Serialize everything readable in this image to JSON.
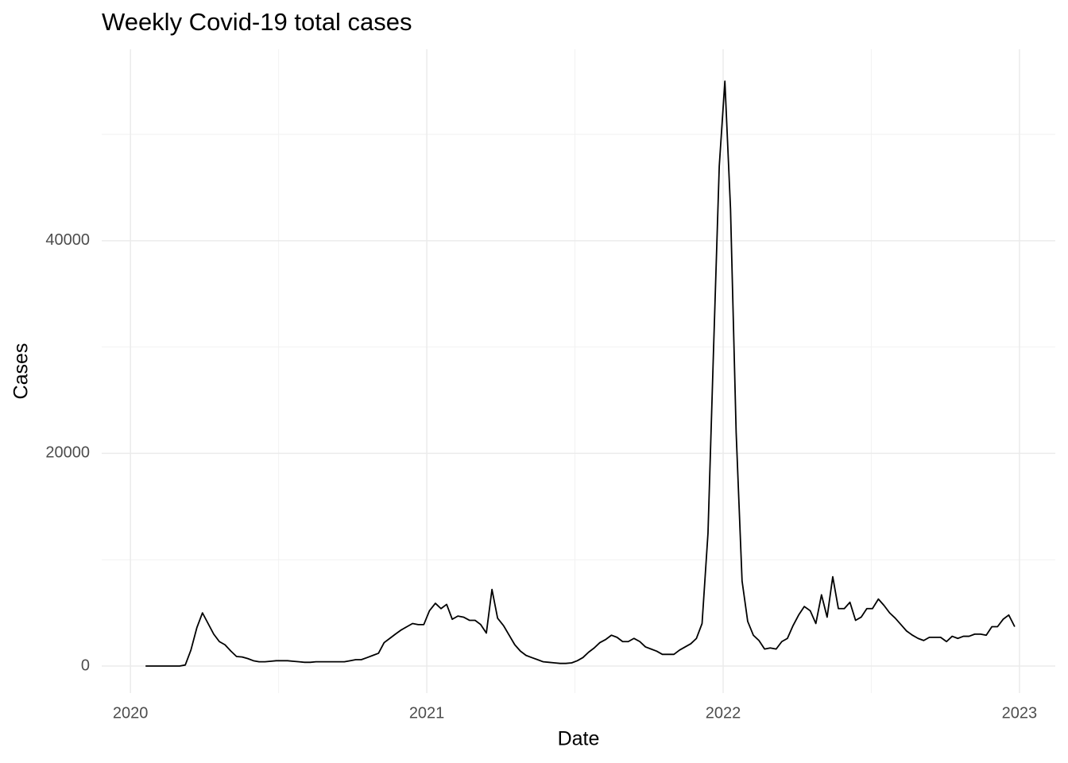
{
  "chart_data": {
    "type": "line",
    "title": "Weekly Covid-19 total cases",
    "x_label": "Date",
    "y_label": "Cases",
    "color": "#000000",
    "grid": true,
    "xlim": [
      2019.903,
      2023.121
    ],
    "xticks": [
      2020,
      2021,
      2022,
      2023
    ],
    "x_minor_grid": [
      2020.5,
      2021.5,
      2022.5
    ],
    "ylim": [
      -2540,
      58000
    ],
    "yticks": [
      0,
      20000,
      40000
    ],
    "y_minor_grid": [
      10000,
      30000,
      50000
    ],
    "x": [
      2020.051,
      2020.07,
      2020.089,
      2020.109,
      2020.128,
      2020.147,
      2020.166,
      2020.185,
      2020.204,
      2020.224,
      2020.243,
      2020.262,
      2020.281,
      2020.3,
      2020.319,
      2020.339,
      2020.358,
      2020.377,
      2020.396,
      2020.415,
      2020.434,
      2020.454,
      2020.473,
      2020.492,
      2020.511,
      2020.53,
      2020.549,
      2020.569,
      2020.588,
      2020.607,
      2020.626,
      2020.645,
      2020.664,
      2020.684,
      2020.703,
      2020.722,
      2020.741,
      2020.76,
      2020.779,
      2020.799,
      2020.818,
      2020.837,
      2020.856,
      2020.875,
      2020.894,
      2020.914,
      2020.933,
      2020.952,
      2020.971,
      2020.99,
      2021.009,
      2021.029,
      2021.048,
      2021.067,
      2021.086,
      2021.105,
      2021.124,
      2021.144,
      2021.163,
      2021.182,
      2021.201,
      2021.22,
      2021.239,
      2021.259,
      2021.278,
      2021.297,
      2021.316,
      2021.335,
      2021.354,
      2021.374,
      2021.393,
      2021.412,
      2021.431,
      2021.45,
      2021.469,
      2021.489,
      2021.508,
      2021.527,
      2021.546,
      2021.565,
      2021.584,
      2021.604,
      2021.623,
      2021.642,
      2021.661,
      2021.68,
      2021.699,
      2021.719,
      2021.738,
      2021.757,
      2021.776,
      2021.795,
      2021.814,
      2021.834,
      2021.853,
      2021.872,
      2021.891,
      2021.91,
      2021.929,
      2021.949,
      2021.968,
      2021.987,
      2022.006,
      2022.025,
      2022.044,
      2022.064,
      2022.083,
      2022.102,
      2022.121,
      2022.14,
      2022.159,
      2022.179,
      2022.198,
      2022.217,
      2022.236,
      2022.255,
      2022.274,
      2022.294,
      2022.313,
      2022.332,
      2022.351,
      2022.37,
      2022.389,
      2022.409,
      2022.428,
      2022.447,
      2022.466,
      2022.485,
      2022.504,
      2022.524,
      2022.543,
      2022.562,
      2022.581,
      2022.6,
      2022.619,
      2022.639,
      2022.658,
      2022.677,
      2022.696,
      2022.715,
      2022.734,
      2022.754,
      2022.773,
      2022.792,
      2022.811,
      2022.83,
      2022.849,
      2022.869,
      2022.888,
      2022.907,
      2022.926,
      2022.945,
      2022.964,
      2022.984
    ],
    "values": [
      0,
      0,
      0,
      0,
      0,
      0,
      0,
      100,
      1500,
      3600,
      5000,
      4000,
      3000,
      2300,
      2000,
      1400,
      900,
      850,
      700,
      500,
      400,
      400,
      450,
      500,
      500,
      500,
      450,
      400,
      350,
      350,
      400,
      400,
      400,
      400,
      400,
      400,
      500,
      600,
      600,
      800,
      1000,
      1200,
      2200,
      2600,
      3000,
      3400,
      3700,
      4000,
      3900,
      3900,
      5200,
      5900,
      5400,
      5800,
      4400,
      4700,
      4600,
      4300,
      4300,
      3900,
      3100,
      7200,
      4500,
      3800,
      2900,
      2000,
      1400,
      1000,
      800,
      600,
      400,
      350,
      300,
      250,
      250,
      300,
      500,
      800,
      1300,
      1700,
      2200,
      2500,
      2900,
      2700,
      2300,
      2300,
      2600,
      2300,
      1800,
      1600,
      1400,
      1100,
      1100,
      1100,
      1500,
      1800,
      2100,
      2600,
      4000,
      12500,
      30000,
      47000,
      55000,
      43000,
      22000,
      8000,
      4200,
      2900,
      2400,
      1600,
      1700,
      1600,
      2300,
      2600,
      3800,
      4800,
      5600,
      5200,
      4000,
      6700,
      4600,
      8400,
      5400,
      5400,
      6000,
      4300,
      4600,
      5400,
      5400,
      6300,
      5700,
      5000,
      4500,
      3900,
      3300,
      2900,
      2600,
      2400,
      2700,
      2700,
      2700,
      2300,
      2800,
      2600,
      2800,
      2800,
      3000,
      3000,
      2900,
      3700,
      3700,
      4400,
      4800,
      3700
    ]
  }
}
